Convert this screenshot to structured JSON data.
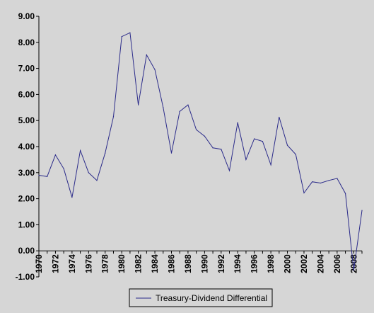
{
  "chart_data": {
    "type": "line",
    "title": "",
    "xlabel": "",
    "ylabel": "",
    "ylim": [
      -1,
      9
    ],
    "xlim": [
      1970,
      2009
    ],
    "grid": false,
    "legend_position": "bottom",
    "y_ticks": [
      "9.00",
      "8.00",
      "7.00",
      "6.00",
      "5.00",
      "4.00",
      "3.00",
      "2.00",
      "1.00",
      "0.00",
      "-1.00"
    ],
    "x_ticks": [
      "1970",
      "1972",
      "1974",
      "1976",
      "1978",
      "1980",
      "1982",
      "1984",
      "1986",
      "1988",
      "1990",
      "1992",
      "1994",
      "1996",
      "1998",
      "2000",
      "2002",
      "2004",
      "2006",
      "2008"
    ],
    "series": [
      {
        "name": "Treasury-Dividend Differential",
        "color": "#2b2b8a",
        "x": [
          1970,
          1971,
          1972,
          1973,
          1974,
          1975,
          1976,
          1977,
          1978,
          1979,
          1980,
          1981,
          1982,
          1983,
          1984,
          1985,
          1986,
          1987,
          1988,
          1989,
          1990,
          1991,
          1992,
          1993,
          1994,
          1995,
          1996,
          1997,
          1998,
          1999,
          2000,
          2001,
          2002,
          2003,
          2004,
          2005,
          2006,
          2007,
          2008,
          2009
        ],
        "values": [
          2.9,
          2.85,
          3.68,
          3.15,
          2.05,
          3.85,
          3.0,
          2.7,
          3.75,
          5.15,
          8.22,
          8.37,
          5.6,
          7.52,
          6.95,
          5.5,
          3.75,
          5.35,
          5.6,
          4.65,
          4.4,
          3.95,
          3.9,
          3.08,
          4.92,
          3.5,
          4.3,
          4.2,
          3.3,
          5.13,
          4.05,
          3.7,
          2.22,
          2.65,
          2.6,
          2.7,
          2.78,
          2.2,
          -0.75,
          1.55
        ]
      }
    ]
  }
}
